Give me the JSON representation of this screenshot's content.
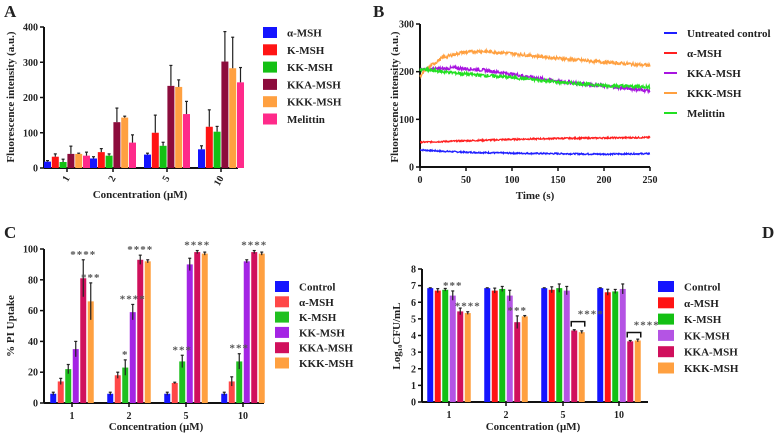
{
  "chart_data": [
    {
      "panel": "A",
      "type": "bar",
      "categories": [
        "1",
        "2",
        "5",
        "10"
      ],
      "xlabel": "Concentration (μM)",
      "ylabel": "Fluorescence intensity (a.u.)",
      "ylim": [
        0,
        400
      ],
      "yticks": [
        0,
        100,
        200,
        300,
        400
      ],
      "legend": "right",
      "series": [
        {
          "name": "α-MSH",
          "color": "#1414ff",
          "values": [
            18,
            27,
            38,
            53
          ],
          "errors": [
            3,
            5,
            4,
            10
          ]
        },
        {
          "name": "K-MSH",
          "color": "#ff1414",
          "values": [
            32,
            45,
            100,
            117
          ],
          "errors": [
            8,
            10,
            50,
            48
          ]
        },
        {
          "name": "KK-MSH",
          "color": "#14c014",
          "values": [
            17,
            35,
            63,
            103
          ],
          "errors": [
            8,
            5,
            10,
            15
          ]
        },
        {
          "name": "KKA-MSH",
          "color": "#8c0c3c",
          "values": [
            40,
            130,
            233,
            302
          ],
          "errors": [
            22,
            40,
            58,
            85
          ]
        },
        {
          "name": "KKK-MSH",
          "color": "#ffa040",
          "values": [
            40,
            143,
            230,
            283
          ],
          "errors": [
            2,
            4,
            20,
            88
          ]
        },
        {
          "name": "Melittin",
          "color": "#ff2a8a",
          "values": [
            35,
            72,
            153,
            243
          ],
          "errors": [
            10,
            22,
            36,
            42
          ]
        }
      ]
    },
    {
      "panel": "B",
      "type": "line",
      "xlabel": "Time (s)",
      "ylabel": "Fluorescence intensity (a.u.)",
      "xlim": [
        0,
        250
      ],
      "ylim": [
        0,
        300
      ],
      "xticks": [
        0,
        50,
        100,
        150,
        200,
        250
      ],
      "yticks": [
        0,
        100,
        200,
        300
      ],
      "legend": "right",
      "series": [
        {
          "name": "Untreated control",
          "color": "#1e1eff",
          "x": [
            0,
            25,
            50,
            100,
            150,
            200,
            250
          ],
          "y": [
            36,
            33,
            31,
            29,
            28,
            27,
            28
          ]
        },
        {
          "name": "α-MSH",
          "color": "#ff2020",
          "x": [
            0,
            50,
            100,
            150,
            200,
            250
          ],
          "y": [
            52,
            55,
            58,
            60,
            61,
            62
          ]
        },
        {
          "name": "KKA-MSH",
          "color": "#a814e0",
          "x": [
            0,
            20,
            40,
            70,
            100,
            150,
            200,
            250
          ],
          "y": [
            205,
            206,
            208,
            203,
            195,
            180,
            170,
            160
          ]
        },
        {
          "name": "KKK-MSH",
          "color": "#ffa040",
          "x": [
            0,
            10,
            25,
            45,
            65,
            90,
            120,
            150,
            200,
            250
          ],
          "y": [
            190,
            210,
            230,
            240,
            243,
            240,
            234,
            228,
            220,
            213
          ]
        },
        {
          "name": "Melittin",
          "color": "#22e022",
          "x": [
            0,
            25,
            50,
            100,
            150,
            200,
            250
          ],
          "y": [
            205,
            200,
            195,
            188,
            178,
            171,
            168
          ]
        }
      ]
    },
    {
      "panel": "C",
      "type": "bar",
      "categories": [
        "1",
        "2",
        "5",
        "10"
      ],
      "xlabel": "Concentration (μM)",
      "ylabel": "% PI Uptake",
      "ylim": [
        0,
        100
      ],
      "yticks": [
        0,
        20,
        40,
        60,
        80,
        100
      ],
      "legend": "right",
      "series": [
        {
          "name": "Control",
          "color": "#1414ff",
          "values": [
            6,
            6,
            6,
            6
          ],
          "errors": [
            1,
            1,
            1,
            1
          ]
        },
        {
          "name": "α-MSH",
          "color": "#ff4848",
          "values": [
            14,
            18,
            13,
            14
          ],
          "errors": [
            2,
            2,
            0.5,
            3
          ]
        },
        {
          "name": "K-MSH",
          "color": "#20c020",
          "values": [
            22,
            23,
            27,
            27
          ],
          "errors": [
            3,
            5,
            4,
            5
          ]
        },
        {
          "name": "KK-MSH",
          "color": "#a424e4",
          "values": [
            35,
            59,
            90,
            92
          ],
          "errors": [
            5,
            5,
            4,
            1
          ]
        },
        {
          "name": "KKA-MSH",
          "color": "#d0105c",
          "values": [
            81,
            93,
            98,
            98
          ],
          "errors": [
            12,
            3,
            1,
            1
          ]
        },
        {
          "name": "KKK-MSH",
          "color": "#ffa040",
          "values": [
            66,
            92,
            97,
            97
          ],
          "errors": [
            12,
            1,
            1,
            1
          ]
        }
      ],
      "annotations": [
        {
          "group": 0,
          "series": 4,
          "text": "****"
        },
        {
          "group": 0,
          "series": 5,
          "text": "***"
        },
        {
          "group": 1,
          "series": 2,
          "text": "*"
        },
        {
          "group": 1,
          "series": 3,
          "text": "****"
        },
        {
          "group": 1,
          "series": 4,
          "text": "****"
        },
        {
          "group": 2,
          "series": 2,
          "text": "***"
        },
        {
          "group": 2,
          "series": 4,
          "text": "****"
        },
        {
          "group": 3,
          "series": 2,
          "text": "***"
        },
        {
          "group": 3,
          "series": 4,
          "text": "****"
        }
      ]
    },
    {
      "panel": "D",
      "type": "bar",
      "categories": [
        "1",
        "2",
        "5",
        "10"
      ],
      "xlabel": "Concentration (μM)",
      "ylabel": "Log₁₀CFU/mL",
      "ylim": [
        0,
        8
      ],
      "yticks": [
        0,
        1,
        2,
        3,
        4,
        5,
        6,
        7,
        8
      ],
      "legend": "right",
      "series": [
        {
          "name": "Control",
          "color": "#1414ff",
          "values": [
            6.85,
            6.85,
            6.85,
            6.85
          ],
          "errors": [
            0.02,
            0.02,
            0.02,
            0.02
          ]
        },
        {
          "name": "α-MSH",
          "color": "#ff1414",
          "values": [
            6.7,
            6.7,
            6.75,
            6.6
          ],
          "errors": [
            0.12,
            0.15,
            0.18,
            0.18
          ]
        },
        {
          "name": "K-MSH",
          "color": "#14c014",
          "values": [
            6.75,
            6.8,
            6.85,
            6.65
          ],
          "errors": [
            0.08,
            0.15,
            0.25,
            0.12
          ]
        },
        {
          "name": "KK-MSH",
          "color": "#b454e4",
          "values": [
            6.4,
            6.4,
            6.7,
            6.8
          ],
          "errors": [
            0.28,
            0.32,
            0.25,
            0.3
          ]
        },
        {
          "name": "KKA-MSH",
          "color": "#d0105c",
          "values": [
            5.45,
            4.8,
            4.3,
            3.65
          ],
          "errors": [
            0.2,
            0.38,
            0.05,
            0.05
          ]
        },
        {
          "name": "KKK-MSH",
          "color": "#ffa040",
          "values": [
            5.35,
            5.15,
            4.2,
            3.7
          ],
          "errors": [
            0.08,
            0.05,
            0.08,
            0.08
          ]
        }
      ],
      "annotations": [
        {
          "group": 0,
          "series": 3,
          "text": "***"
        },
        {
          "group": 0,
          "series": 5,
          "text": "****"
        },
        {
          "group": 1,
          "series": 4,
          "text": "***"
        },
        {
          "group": 2,
          "series": 4,
          "text": "****",
          "bracket_to": 5
        },
        {
          "group": 3,
          "series": 4,
          "text": "****",
          "bracket_to": 5
        }
      ]
    }
  ]
}
